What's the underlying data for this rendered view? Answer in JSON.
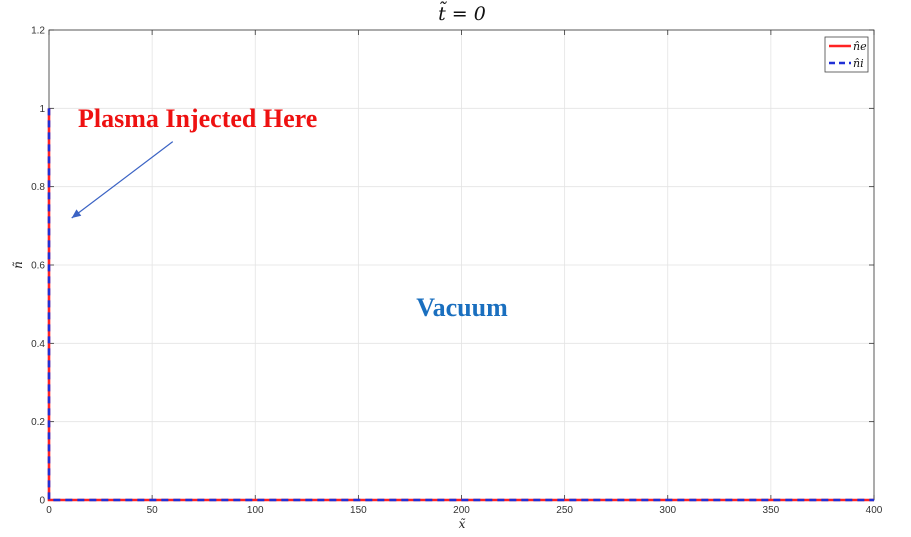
{
  "chart_data": {
    "type": "line",
    "title": "t̃ = 0",
    "xlabel": "x̃",
    "ylabel": "ñ",
    "xlim": [
      0,
      400
    ],
    "ylim": [
      0,
      1.2
    ],
    "xticks": [
      0,
      50,
      100,
      150,
      200,
      250,
      300,
      350,
      400
    ],
    "yticks": [
      0,
      0.2,
      0.4,
      0.6,
      0.8,
      1,
      1.2
    ],
    "xtick_labels": [
      "0",
      "50",
      "100",
      "150",
      "200",
      "250",
      "300",
      "350",
      "400"
    ],
    "ytick_labels": [
      "0",
      "0.2",
      "0.4",
      "0.6",
      "0.8",
      "1",
      "1.2"
    ],
    "grid": true,
    "legend_position": "top-right",
    "series": [
      {
        "name": "n̂e",
        "color": "#ff2222",
        "dash": "solid",
        "x": [
          0,
          0,
          400
        ],
        "y": [
          1,
          0,
          0
        ]
      },
      {
        "name": "n̂i",
        "color": "#1f2fd6",
        "dash": "dashed",
        "x": [
          0,
          0,
          400
        ],
        "y": [
          1,
          0,
          0
        ]
      }
    ],
    "annotations": [
      {
        "text": "Plasma Injected Here",
        "color": "#ee1111"
      },
      {
        "text": "Vacuum",
        "color": "#1a6fbf"
      }
    ],
    "arrow": {
      "from": [
        60,
        0.915
      ],
      "to": [
        11,
        0.72
      ],
      "color": "#3b63c4"
    }
  }
}
